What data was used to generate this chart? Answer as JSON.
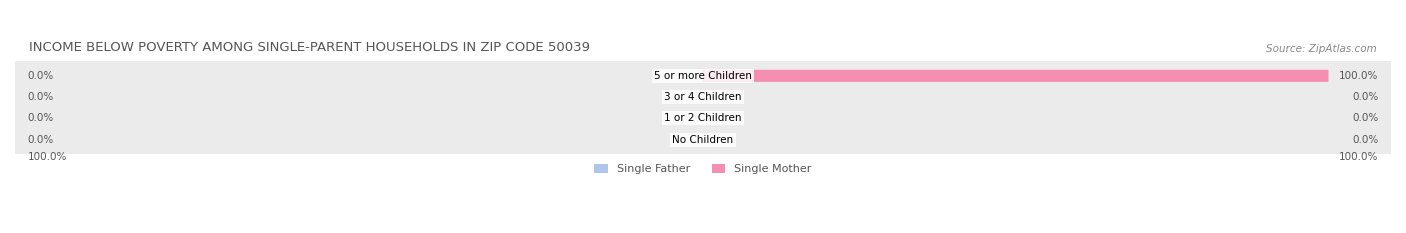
{
  "title": "INCOME BELOW POVERTY AMONG SINGLE-PARENT HOUSEHOLDS IN ZIP CODE 50039",
  "source": "Source: ZipAtlas.com",
  "categories": [
    "No Children",
    "1 or 2 Children",
    "3 or 4 Children",
    "5 or more Children"
  ],
  "father_values": [
    0.0,
    0.0,
    0.0,
    0.0
  ],
  "mother_values": [
    0.0,
    0.0,
    0.0,
    100.0
  ],
  "father_color": "#aec6e8",
  "mother_color": "#f48fb1",
  "bar_bg_color": "#ebebeb",
  "bar_height": 0.55,
  "figsize": [
    14.06,
    2.33
  ],
  "dpi": 100,
  "left_label": "100.0%",
  "right_label": "100.0%",
  "title_fontsize": 9.5,
  "source_fontsize": 7.5,
  "label_fontsize": 7.5,
  "category_fontsize": 7.5,
  "legend_fontsize": 8,
  "xlim": [
    -110,
    110
  ],
  "father_legend": "Single Father",
  "mother_legend": "Single Mother"
}
